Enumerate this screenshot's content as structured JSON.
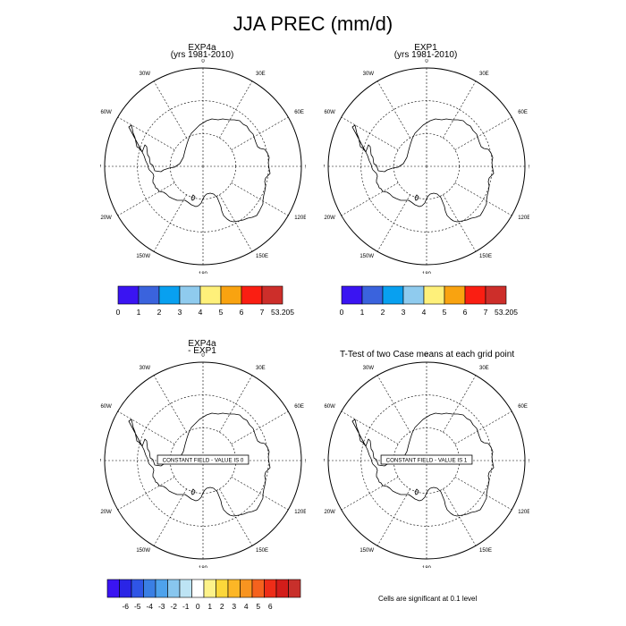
{
  "title": "JJA PREC (mm/d)",
  "colors": {
    "precip_scale": [
      "#3a14f2",
      "#3a63dd",
      "#08a0f0",
      "#8fcbee",
      "#fef07a",
      "#f9a310",
      "#fa1e12",
      "#cd2e2a"
    ],
    "diff_scale": [
      "#3a14f2",
      "#2a25e6",
      "#2f55e6",
      "#3a7fe4",
      "#4ea2ec",
      "#88c6ee",
      "#bde4f4",
      "#ffffff",
      "#fdf28a",
      "#fcd73a",
      "#fcb626",
      "#f89420",
      "#f5621e",
      "#ee2d18",
      "#d21d1a",
      "#c8302b"
    ]
  },
  "grid_labels": [
    "0",
    "30E",
    "60E",
    "90E",
    "120E",
    "150E",
    "180",
    "150W",
    "120W",
    "90W",
    "60W",
    "30W"
  ],
  "panels": [
    {
      "title_line1": "EXP4a",
      "title_line2": "(yrs 1981-2010)",
      "colorbar_labels": [
        "0",
        "1",
        "2",
        "3",
        "4",
        "5",
        "6",
        "7",
        "53.205"
      ]
    },
    {
      "title_line1": "EXP1",
      "title_line2": "(yrs 1981-2010)",
      "colorbar_labels": [
        "0",
        "1",
        "2",
        "3",
        "4",
        "5",
        "6",
        "7",
        "53.205"
      ]
    },
    {
      "title_line1": "EXP4a",
      "title_line2": "- EXP1",
      "constant_field": "CONSTANT FIELD - VALUE IS 0"
    },
    {
      "title_line1": "T-Test of two Case means at each grid point",
      "constant_field": "CONSTANT FIELD - VALUE IS 1"
    }
  ],
  "diff_colorbar_labels": [
    "-6",
    "-5",
    "-4",
    "-3",
    "-2",
    "-1",
    "0",
    "1",
    "2",
    "3",
    "4",
    "5",
    "6"
  ],
  "footnote": "Cells are significant at 0.1 level"
}
